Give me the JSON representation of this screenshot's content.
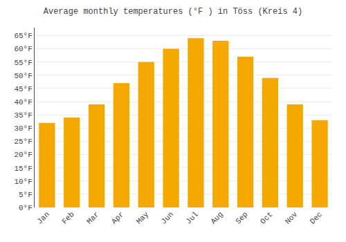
{
  "chart_data": {
    "type": "bar",
    "title": "Average monthly temperatures (°F ) in Töss (Kreis 4)",
    "categories": [
      "Jan",
      "Feb",
      "Mar",
      "Apr",
      "May",
      "Jun",
      "Jul",
      "Aug",
      "Sep",
      "Oct",
      "Nov",
      "Dec"
    ],
    "values": [
      32,
      34,
      39,
      47,
      55,
      60,
      64,
      63,
      57,
      49,
      39,
      33
    ],
    "color": "#F5A800",
    "ylim": [
      0,
      68
    ],
    "yticks": [
      {
        "value": 0,
        "label": "0°F"
      },
      {
        "value": 5,
        "label": "5°F"
      },
      {
        "value": 10,
        "label": "10°F"
      },
      {
        "value": 15,
        "label": "15°F"
      },
      {
        "value": 20,
        "label": "20°F"
      },
      {
        "value": 25,
        "label": "25°F"
      },
      {
        "value": 30,
        "label": "30°F"
      },
      {
        "value": 35,
        "label": "35°F"
      },
      {
        "value": 40,
        "label": "40°F"
      },
      {
        "value": 45,
        "label": "45°F"
      },
      {
        "value": 50,
        "label": "50°F"
      },
      {
        "value": 55,
        "label": "55°F"
      },
      {
        "value": 60,
        "label": "60°F"
      },
      {
        "value": 65,
        "label": "65°F"
      }
    ],
    "grid": true
  }
}
